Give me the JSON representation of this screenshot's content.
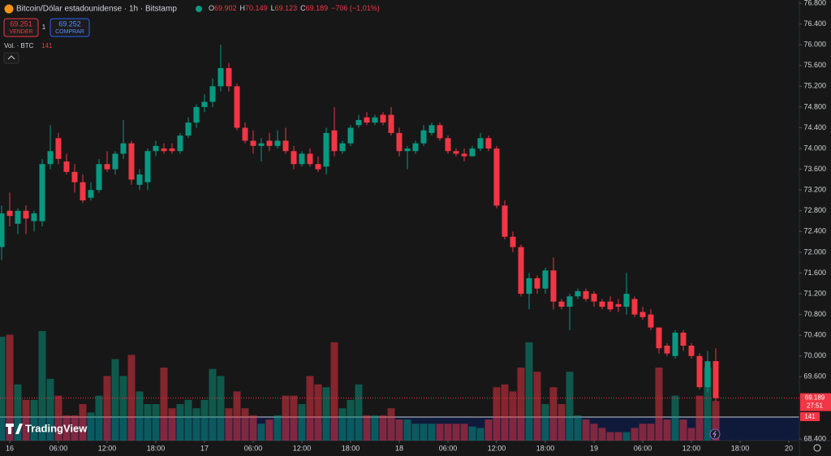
{
  "header": {
    "symbol": "Bitcoin/Dólar estadounidense · 1h · Bitstamp",
    "ohlc": [
      {
        "label": "O",
        "value": "69.902"
      },
      {
        "label": "H",
        "value": "70.149"
      },
      {
        "label": "L",
        "value": "69.123"
      },
      {
        "label": "C",
        "value": "69.189"
      }
    ],
    "change": "−706 (−1,01%)"
  },
  "trade": {
    "sell_price": "69.251",
    "sell": "VENDER",
    "qty": "1",
    "buy_price": "69.252",
    "buy": "COMPRAR"
  },
  "volume_legend": "Vol. · BTC",
  "price_tag": {
    "price": "69.189",
    "countdown": "27:51"
  },
  "logo": "TradingView",
  "chart_data": {
    "type": "candlestick",
    "up_color": "#089981",
    "down_color": "#f23645",
    "grid": false,
    "open": [
      72100,
      72800,
      72550,
      72800,
      72600,
      72600,
      73700,
      74200,
      73750,
      73550,
      73350,
      73050,
      73200,
      73700,
      73600,
      73900,
      74100,
      73300,
      73350,
      73950,
      74000,
      74000,
      73950,
      74250,
      74500,
      74800,
      74900,
      75200,
      75550,
      75200,
      74400,
      74150,
      74050,
      74150,
      74050,
      74150,
      73950,
      73700,
      73900,
      73700,
      73650,
      74350,
      73950,
      74100,
      74450,
      74600,
      74500,
      74650,
      74650,
      74300,
      73950,
      73950,
      74100,
      74300,
      74450,
      74200,
      73950,
      73900,
      73850,
      74000,
      74200,
      74000,
      72900,
      72300,
      72100,
      71200,
      71500,
      71300,
      71650,
      71050,
      70950,
      71150,
      71250,
      71200,
      71050,
      71050,
      71000,
      70950,
      71100,
      70850,
      70800,
      70550,
      70200,
      70000,
      70450,
      70200,
      70000,
      69400,
      69902
    ],
    "high": [
      72900,
      73150,
      72850,
      72900,
      72800,
      73800,
      74450,
      74300,
      73900,
      73700,
      73500,
      73350,
      73800,
      73950,
      73950,
      74550,
      74150,
      73600,
      74000,
      74150,
      74100,
      74100,
      74300,
      74600,
      74850,
      75050,
      75350,
      76000,
      75650,
      75250,
      74500,
      74350,
      74200,
      74300,
      74350,
      74400,
      74050,
      73950,
      74000,
      73850,
      74400,
      74800,
      74150,
      74450,
      74650,
      74700,
      74650,
      74700,
      74800,
      74400,
      74050,
      74150,
      74450,
      74500,
      74500,
      74250,
      74000,
      74000,
      74050,
      74300,
      74250,
      74050,
      73000,
      72400,
      72150,
      71600,
      71550,
      71700,
      71900,
      71100,
      71200,
      71300,
      71300,
      71250,
      71100,
      71150,
      71100,
      71600,
      71150,
      70950,
      70900,
      70550,
      70250,
      70500,
      70500,
      70250,
      70050,
      70100,
      70149
    ],
    "low": [
      71850,
      72500,
      72350,
      72350,
      72400,
      72500,
      73600,
      73700,
      73500,
      73150,
      72950,
      73000,
      73150,
      73550,
      73500,
      73800,
      73300,
      73200,
      73200,
      73850,
      73900,
      73900,
      73900,
      74200,
      74400,
      74700,
      74800,
      75100,
      75100,
      74350,
      74100,
      73900,
      73750,
      73950,
      74000,
      73900,
      73600,
      73650,
      73650,
      73550,
      73500,
      73850,
      73900,
      74050,
      74400,
      74450,
      74450,
      74450,
      74250,
      73850,
      73600,
      73900,
      74050,
      74250,
      74150,
      73900,
      73850,
      73750,
      73850,
      73950,
      73950,
      72850,
      72250,
      72000,
      71150,
      70900,
      71200,
      71200,
      70900,
      70900,
      70500,
      71100,
      71050,
      70950,
      70900,
      70850,
      70850,
      70800,
      70750,
      70700,
      70500,
      70050,
      70000,
      69950,
      70100,
      69950,
      69350,
      69300,
      69123
    ],
    "close": [
      72750,
      72700,
      72800,
      72650,
      72750,
      73700,
      73950,
      73800,
      73550,
      73350,
      73000,
      73200,
      73700,
      73600,
      73900,
      74100,
      73400,
      73500,
      73950,
      74050,
      73950,
      73950,
      74250,
      74500,
      74800,
      74900,
      75200,
      75550,
      75200,
      74400,
      74150,
      74050,
      74100,
      74050,
      74150,
      73950,
      73700,
      73900,
      73700,
      73600,
      74300,
      73950,
      74100,
      74400,
      74550,
      74500,
      74600,
      74500,
      74300,
      73950,
      74000,
      74100,
      74350,
      74450,
      74200,
      73950,
      73900,
      73850,
      74000,
      74200,
      74000,
      72900,
      72300,
      72100,
      71200,
      71500,
      71300,
      71650,
      71050,
      70950,
      71150,
      71250,
      71100,
      71050,
      70950,
      70900,
      70950,
      71200,
      70800,
      70750,
      70550,
      70150,
      70050,
      70450,
      70200,
      70000,
      69400,
      69900,
      69189
    ],
    "volume": [
      370,
      377,
      200,
      145,
      145,
      390,
      220,
      160,
      90,
      90,
      130,
      100,
      160,
      230,
      290,
      230,
      305,
      175,
      130,
      130,
      260,
      115,
      130,
      145,
      115,
      145,
      255,
      230,
      115,
      175,
      115,
      90,
      60,
      75,
      90,
      160,
      160,
      130,
      230,
      200,
      190,
      350,
      115,
      145,
      200,
      90,
      90,
      90,
      115,
      75,
      75,
      60,
      60,
      60,
      60,
      60,
      60,
      60,
      50,
      45,
      75,
      190,
      200,
      175,
      260,
      350,
      245,
      130,
      190,
      130,
      245,
      90,
      75,
      60,
      45,
      30,
      30,
      30,
      45,
      60,
      60,
      260,
      75,
      160,
      75,
      45,
      160,
      260,
      141
    ],
    "ylim": [
      68370,
      76863
    ],
    "yticks": [
      {
        "value": 76800,
        "label": "76.800"
      },
      {
        "value": 76400,
        "label": "76.400"
      },
      {
        "value": 76000,
        "label": "76.000"
      },
      {
        "value": 75600,
        "label": "75.600"
      },
      {
        "value": 75200,
        "label": "75.200"
      },
      {
        "value": 74800,
        "label": "74.800"
      },
      {
        "value": 74400,
        "label": "74.400"
      },
      {
        "value": 74000,
        "label": "74.000"
      },
      {
        "value": 73600,
        "label": "73.600"
      },
      {
        "value": 73200,
        "label": "73.200"
      },
      {
        "value": 72800,
        "label": "72.800"
      },
      {
        "value": 72400,
        "label": "72.400"
      },
      {
        "value": 72000,
        "label": "72.000"
      },
      {
        "value": 71600,
        "label": "71.600"
      },
      {
        "value": 71200,
        "label": "71.200"
      },
      {
        "value": 70800,
        "label": "70.800"
      },
      {
        "value": 70400,
        "label": "70.400"
      },
      {
        "value": 70000,
        "label": "70.000"
      },
      {
        "value": 69600,
        "label": "69.600"
      },
      {
        "value": 68400,
        "label": "68.400"
      }
    ],
    "xlim": [
      -0.2,
      98.3
    ],
    "xticks": [
      {
        "value": 1,
        "label": "16"
      },
      {
        "value": 7,
        "label": "06:00"
      },
      {
        "value": 13,
        "label": "12:00"
      },
      {
        "value": 19,
        "label": "18:00"
      },
      {
        "value": 25,
        "label": "17"
      },
      {
        "value": 31,
        "label": "06:00"
      },
      {
        "value": 37,
        "label": "12:00"
      },
      {
        "value": 43,
        "label": "18:00"
      },
      {
        "value": 49,
        "label": "18"
      },
      {
        "value": 55,
        "label": "06:00"
      },
      {
        "value": 61,
        "label": "12:00"
      },
      {
        "value": 67,
        "label": "18:00"
      },
      {
        "value": 73,
        "label": "19"
      },
      {
        "value": 79,
        "label": "06:00"
      },
      {
        "value": 85,
        "label": "12:00"
      },
      {
        "value": 91,
        "label": "18:00"
      },
      {
        "value": 97,
        "label": "20"
      }
    ]
  }
}
